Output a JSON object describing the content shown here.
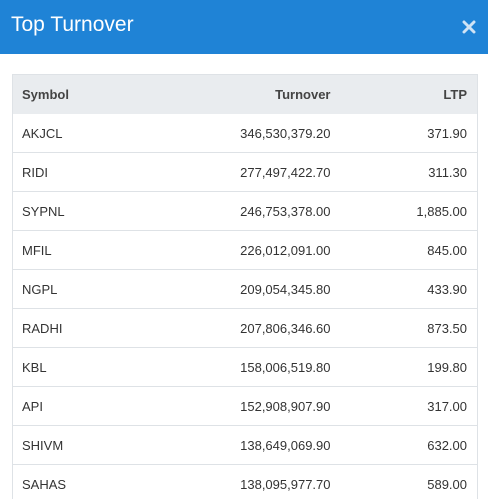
{
  "header": {
    "title": "Top Turnover"
  },
  "table": {
    "columns": [
      "Symbol",
      "Turnover",
      "LTP"
    ],
    "rows": [
      [
        "AKJCL",
        "346,530,379.20",
        "371.90"
      ],
      [
        "RIDI",
        "277,497,422.70",
        "311.30"
      ],
      [
        "SYPNL",
        "246,753,378.00",
        "1,885.00"
      ],
      [
        "MFIL",
        "226,012,091.00",
        "845.00"
      ],
      [
        "NGPL",
        "209,054,345.80",
        "433.90"
      ],
      [
        "RADHI",
        "207,806,346.60",
        "873.50"
      ],
      [
        "KBL",
        "158,006,519.80",
        "199.80"
      ],
      [
        "API",
        "152,908,907.90",
        "317.00"
      ],
      [
        "SHIVM",
        "138,649,069.90",
        "632.00"
      ],
      [
        "SAHAS",
        "138,095,977.70",
        "589.00"
      ]
    ]
  }
}
